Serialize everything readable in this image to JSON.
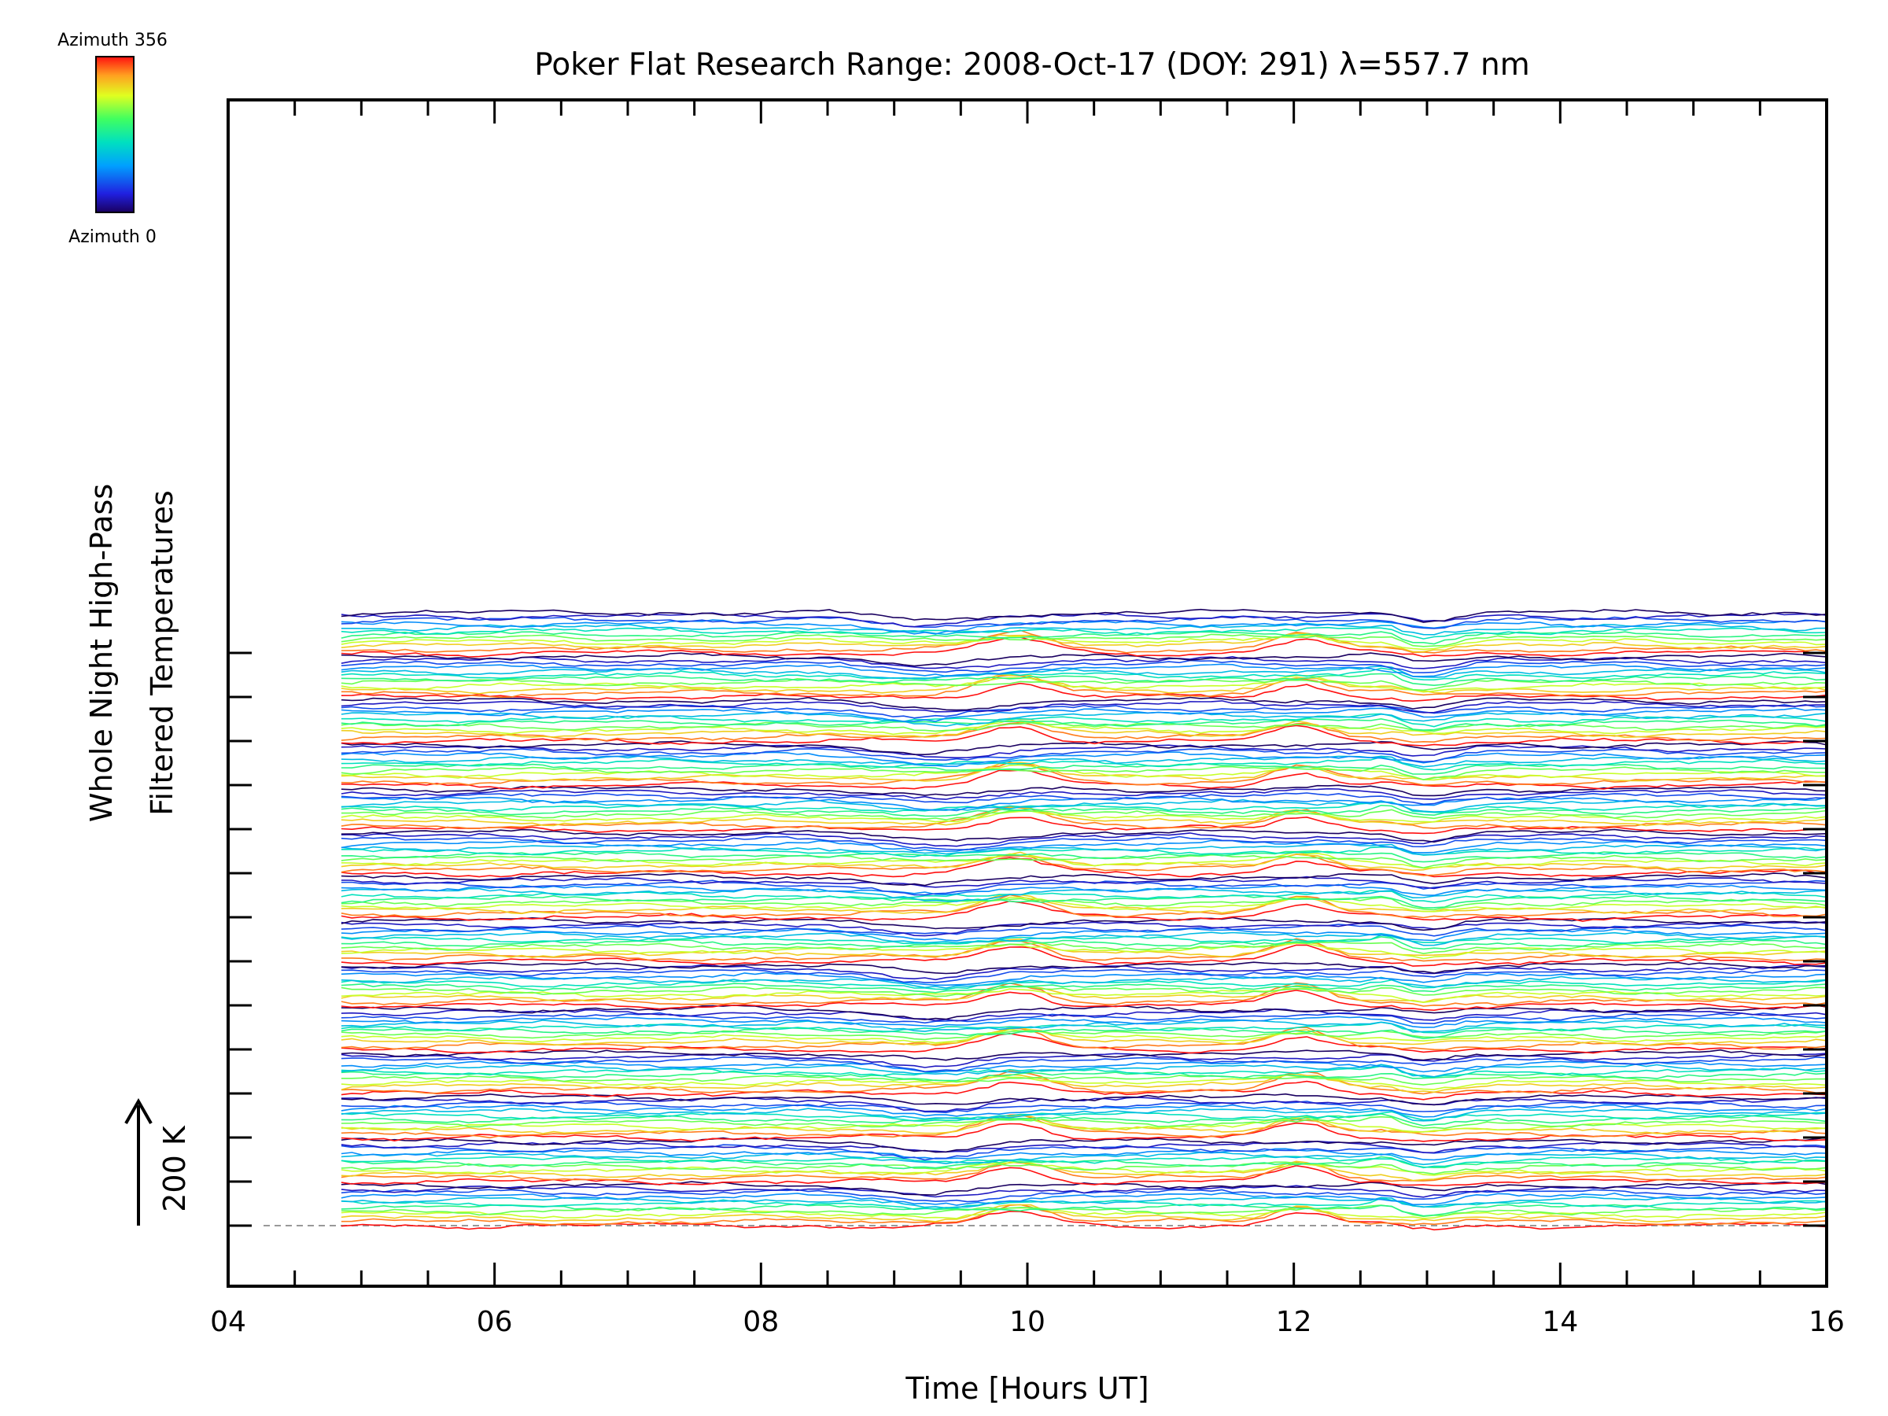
{
  "chart_data": {
    "type": "line",
    "title": "Poker Flat Research Range: 2008-Oct-17 (DOY: 291) λ=557.7 nm",
    "xlabel": "Time [Hours UT]",
    "ylabel_lines": [
      "Whole Night High-Pass",
      "Filtered Temperatures"
    ],
    "scale_marker_label": "200 K",
    "xlim": [
      4,
      16
    ],
    "x_ticks": [
      "04",
      "06",
      "08",
      "10",
      "12",
      "14",
      "16"
    ],
    "x_tick_values": [
      4,
      6,
      8,
      10,
      12,
      14,
      16
    ],
    "data_time_range": [
      4.85,
      16.0
    ],
    "colorbar": {
      "top_label": "Azimuth 356",
      "bottom_label": "Azimuth 0",
      "min_azimuth": 0,
      "max_azimuth": 356,
      "colormap": "rainbow"
    },
    "trace_groups": 14,
    "traces_per_group": 12,
    "total_traces": 168,
    "trace_offset_kelvin": 6.1,
    "scale_bar_kelvin": 200,
    "features": [
      {
        "time": 9.9,
        "note": "wave crest"
      },
      {
        "time": 12.05,
        "note": "wave crest"
      },
      {
        "time": 12.7,
        "note": "disturbance"
      },
      {
        "time": 13.0,
        "note": "trough"
      }
    ],
    "grid": false,
    "legend": "colorbar top-left"
  }
}
